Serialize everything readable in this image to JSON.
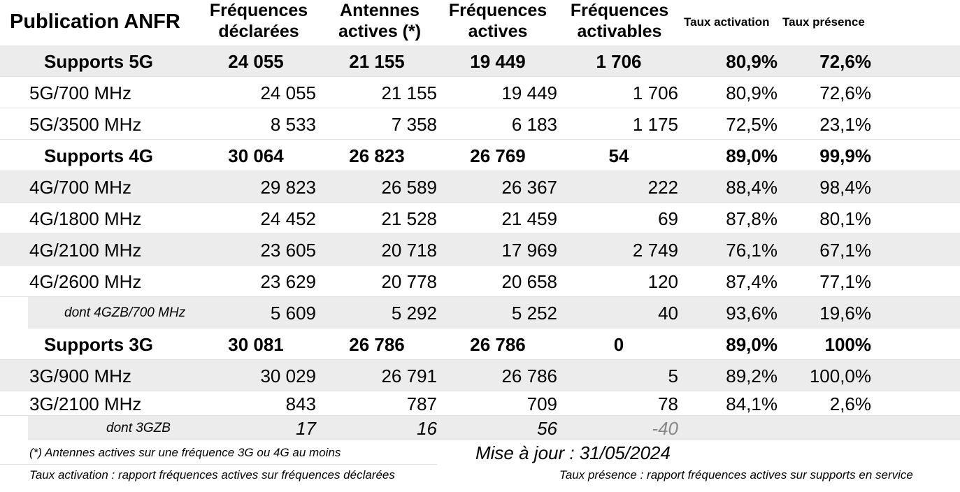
{
  "header": {
    "title": "Publication ANFR",
    "columns": [
      "Fréquences\ndéclarées",
      "Antennes\nactives (*)",
      "Fréquences\nactives",
      "Fréquences\nactivables",
      "Taux activation",
      "Taux présence"
    ]
  },
  "sections": [
    {
      "summary": {
        "label": "Supports 5G",
        "values": [
          "24 055",
          "21 155",
          "19 449",
          "1 706",
          "80,9%",
          "72,6%"
        ]
      },
      "rows": [
        {
          "label": "5G/700 MHz",
          "values": [
            "24 055",
            "21 155",
            "19 449",
            "1 706",
            "80,9%",
            "72,6%"
          ]
        },
        {
          "label": "5G/3500 MHz",
          "values": [
            "8 533",
            "7 358",
            "6 183",
            "1 175",
            "72,5%",
            "23,1%"
          ]
        }
      ]
    },
    {
      "summary": {
        "label": "Supports 4G",
        "values": [
          "30 064",
          "26 823",
          "26 769",
          "54",
          "89,0%",
          "99,9%"
        ]
      },
      "rows": [
        {
          "label": "4G/700 MHz",
          "values": [
            "29 823",
            "26 589",
            "26 367",
            "222",
            "88,4%",
            "98,4%"
          ]
        },
        {
          "label": "4G/1800 MHz",
          "values": [
            "24 452",
            "21 528",
            "21 459",
            "69",
            "87,8%",
            "80,1%"
          ]
        },
        {
          "label": "4G/2100 MHz",
          "values": [
            "23 605",
            "20 718",
            "17 969",
            "2 749",
            "76,1%",
            "67,1%"
          ]
        },
        {
          "label": "4G/2600 MHz",
          "values": [
            "23 629",
            "20 778",
            "20 658",
            "120",
            "87,4%",
            "77,1%"
          ]
        }
      ],
      "detail": {
        "label": "dont 4GZB/700 MHz",
        "values": [
          "5 609",
          "5 292",
          "5 252",
          "40",
          "93,6%",
          "19,6%"
        ]
      }
    },
    {
      "summary": {
        "label": "Supports 3G",
        "values": [
          "30 081",
          "26 786",
          "26 786",
          "0",
          "89,0%",
          "100%"
        ]
      },
      "rows": [
        {
          "label": "3G/900 MHz",
          "values": [
            "30 029",
            "26 791",
            "26 786",
            "5",
            "89,2%",
            "100,0%"
          ]
        },
        {
          "label": "3G/2100 MHz",
          "values": [
            "843",
            "787",
            "709",
            "78",
            "84,1%",
            "2,6%"
          ]
        }
      ],
      "detail": {
        "label": "dont 3GZB",
        "values": [
          "17",
          "16",
          "56",
          "-40"
        ]
      }
    }
  ],
  "footer": {
    "note": "(*) Antennes actives sur une fréquence 3G ou 4G au moins",
    "updated": "Mise à jour : 31/05/2024",
    "activation_definition": "Taux activation : rapport fréquences actives sur fréquences déclarées",
    "presence_definition": "Taux présence : rapport fréquences actives sur supports en service"
  }
}
